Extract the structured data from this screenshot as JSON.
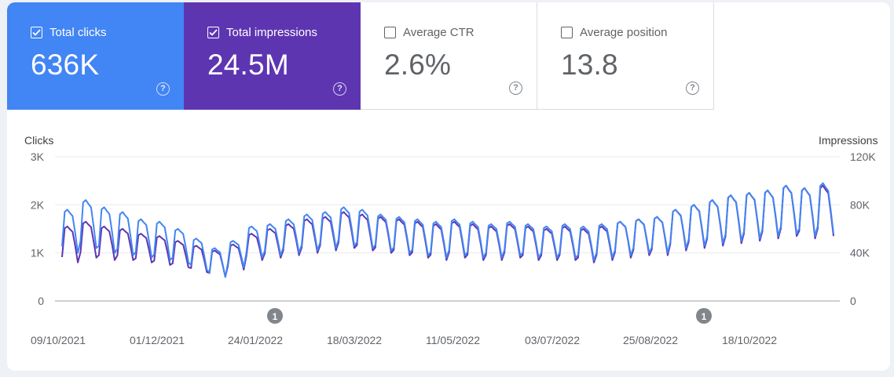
{
  "metrics": [
    {
      "label": "Total clicks",
      "value": "636K",
      "checked": true,
      "color": "#4285f4"
    },
    {
      "label": "Total impressions",
      "value": "24.5M",
      "checked": true,
      "color": "#5e35b1"
    },
    {
      "label": "Average CTR",
      "value": "2.6%",
      "checked": false,
      "color": "#ffffff"
    },
    {
      "label": "Average position",
      "value": "13.8",
      "checked": false,
      "color": "#ffffff"
    }
  ],
  "help_icon": "help-circle-icon",
  "chart": {
    "left_axis_title": "Clicks",
    "right_axis_title": "Impressions",
    "left_ticks": [
      "3K",
      "2K",
      "1K",
      "0"
    ],
    "right_ticks": [
      "120K",
      "80K",
      "40K",
      "0"
    ],
    "x_ticks": [
      "09/10/2021",
      "01/12/2021",
      "24/01/2022",
      "18/03/2022",
      "11/05/2022",
      "03/07/2022",
      "25/08/2022",
      "18/10/2022"
    ],
    "annotations": [
      {
        "label": "1",
        "date": "2022-01-26"
      },
      {
        "label": "1",
        "date": "2022-09-23"
      }
    ],
    "clicks_color": "#4285f4",
    "impressions_color": "#5e35b1"
  },
  "chart_data": {
    "type": "line",
    "x_start": "2021-10-09",
    "x_end": "2022-11-30",
    "y_left_lim": [
      0,
      3000
    ],
    "y_right_lim": [
      0,
      120000
    ],
    "grid": true,
    "series": [
      {
        "name": "Clicks",
        "axis": "left",
        "weekly_peaks": [
          1900,
          2100,
          1950,
          1850,
          1700,
          1650,
          1500,
          1300,
          1100,
          1250,
          1550,
          1600,
          1700,
          1800,
          1850,
          1950,
          1900,
          1800,
          1750,
          1700,
          1650,
          1700,
          1650,
          1600,
          1650,
          1600,
          1550,
          1600,
          1550,
          1600,
          1650,
          1700,
          1750,
          1900,
          2000,
          2100,
          2200,
          2250,
          2300,
          2400,
          2350,
          2450
        ],
        "weekly_troughs": [
          1000,
          1100,
          1000,
          950,
          900,
          850,
          800,
          650,
          500,
          700,
          900,
          950,
          1000,
          1050,
          1100,
          1150,
          1100,
          1050,
          1000,
          950,
          900,
          950,
          900,
          900,
          950,
          900,
          900,
          900,
          850,
          900,
          950,
          1000,
          1000,
          1100,
          1150,
          1200,
          1250,
          1300,
          1350,
          1400,
          1350,
          1400
        ]
      },
      {
        "name": "Impressions",
        "axis": "right",
        "weekly_peaks": [
          62000,
          66000,
          62000,
          60000,
          56000,
          54000,
          50000,
          46000,
          42000,
          47000,
          56000,
          60000,
          64000,
          68000,
          70000,
          74000,
          72000,
          70000,
          68000,
          66000,
          64000,
          66000,
          64000,
          62000,
          64000,
          62000,
          60000,
          62000,
          60000,
          62000,
          66000,
          68000,
          70000,
          76000,
          80000,
          84000,
          88000,
          90000,
          92000,
          96000,
          94000,
          96000
        ],
        "weekly_troughs": [
          32000,
          36000,
          34000,
          34000,
          32000,
          30000,
          28000,
          24000,
          20000,
          26000,
          34000,
          36000,
          38000,
          40000,
          42000,
          44000,
          42000,
          40000,
          38000,
          36000,
          34000,
          36000,
          34000,
          34000,
          36000,
          34000,
          34000,
          34000,
          32000,
          34000,
          36000,
          38000,
          38000,
          42000,
          44000,
          46000,
          48000,
          50000,
          52000,
          54000,
          52000,
          54000
        ]
      }
    ]
  }
}
